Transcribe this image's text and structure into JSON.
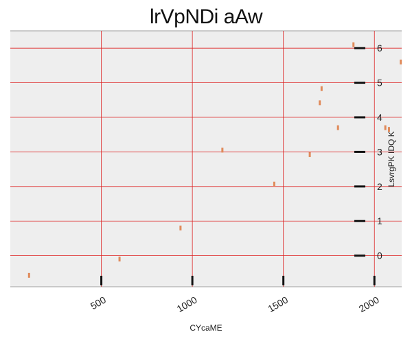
{
  "chart_data": {
    "type": "scatter",
    "title": "lrVpNDi aAw",
    "xlabel": "CYcaME",
    "ylabel": "LsvrgPK IDQ K",
    "xlim": [
      0,
      2150
    ],
    "ylim": [
      -0.9,
      6.5
    ],
    "xticks": [
      500,
      1000,
      1500,
      2000
    ],
    "yticks": [
      0,
      1,
      2,
      3,
      4,
      5,
      6
    ],
    "grid": true,
    "y_axis_side": "right",
    "colors": {
      "background": "#eeeeee",
      "grid": "#dd2222",
      "points": "#e08a5a",
      "spine": "#bbbbbb",
      "tick": "#111111"
    },
    "x": [
      103,
      600,
      935,
      1165,
      1450,
      1645,
      1700,
      1710,
      1800,
      1885,
      2060,
      2080,
      2145
    ],
    "y": [
      -0.57,
      -0.1,
      0.8,
      3.05,
      2.07,
      2.92,
      4.42,
      4.83,
      3.7,
      6.1,
      3.7,
      3.65,
      5.6
    ]
  }
}
